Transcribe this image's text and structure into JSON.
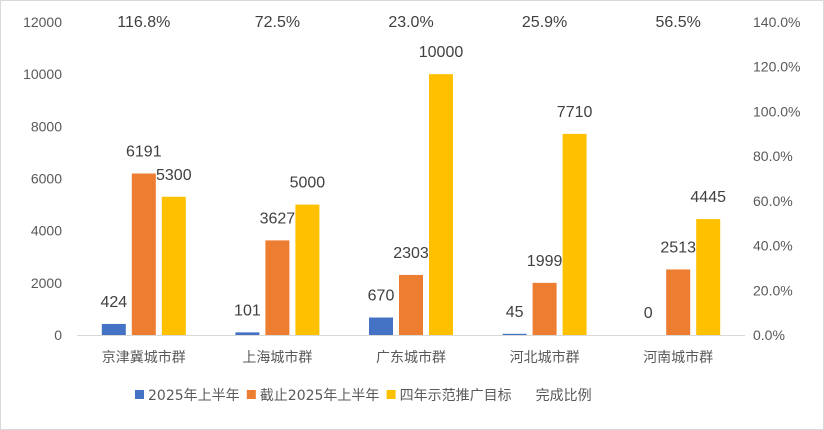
{
  "chart_data": {
    "type": "bar",
    "categories": [
      "京津冀城市群",
      "上海城市群",
      "广东城市群",
      "河北城市群",
      "河南城市群"
    ],
    "series": [
      {
        "name": "2025年上半年",
        "values": [
          424,
          101,
          670,
          45,
          0
        ],
        "color": "#4472C4"
      },
      {
        "name": "截止2025年上半年",
        "values": [
          6191,
          3627,
          2303,
          1999,
          2513
        ],
        "color": "#ED7D31"
      },
      {
        "name": "四年示范推广目标",
        "values": [
          5300,
          5000,
          10000,
          7710,
          4445
        ],
        "color": "#FFC000"
      }
    ],
    "secondary_series": {
      "name": "完成比例",
      "values": [
        "116.8%",
        "72.5%",
        "23.0%",
        "25.9%",
        "56.5%"
      ]
    },
    "y_left": {
      "range": [
        0,
        12000
      ],
      "ticks": [
        "0",
        "2000",
        "4000",
        "6000",
        "8000",
        "10000",
        "12000"
      ]
    },
    "y_right": {
      "range": [
        0,
        140
      ],
      "ticks": [
        "0.0%",
        "20.0%",
        "40.0%",
        "60.0%",
        "80.0%",
        "100.0%",
        "120.0%",
        "140.0%"
      ]
    },
    "grid": false,
    "legend": "bottom"
  }
}
